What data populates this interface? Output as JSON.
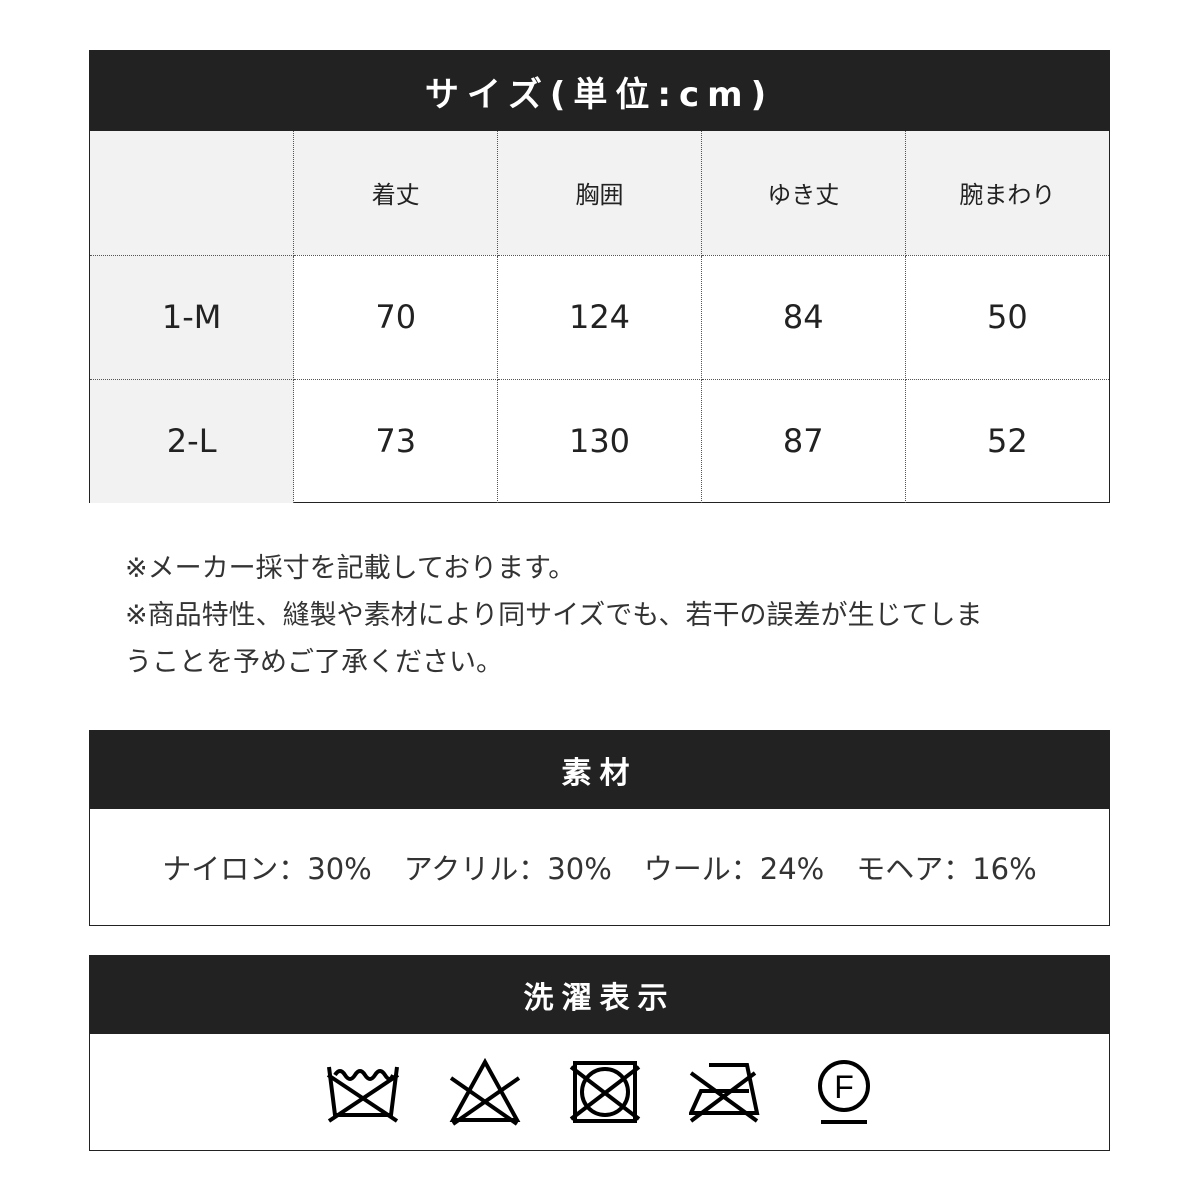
{
  "size_table": {
    "title": "サイズ(単位:cm)",
    "columns": [
      "",
      "着丈",
      "胸囲",
      "ゆき丈",
      "腕まわり"
    ],
    "rows": [
      [
        "1-M",
        "70",
        "124",
        "84",
        "50"
      ],
      [
        "2-L",
        "73",
        "130",
        "87",
        "52"
      ]
    ]
  },
  "notes": [
    "※メーカー採寸を記載しております。",
    "※商品特性、縫製や素材により同サイズでも、若干の誤差が生じてしま",
    "うことを予めご了承ください。"
  ],
  "material": {
    "title": "素材",
    "items": [
      "ナイロン：30%",
      "アクリル：30%",
      "ウール：24%",
      "モヘア：16%"
    ]
  },
  "care": {
    "title": "洗濯表示",
    "icons": [
      "no-wash-icon",
      "no-bleach-icon",
      "no-tumble-dry-icon",
      "no-iron-icon",
      "dry-clean-f-icon"
    ],
    "f_label": "F"
  }
}
